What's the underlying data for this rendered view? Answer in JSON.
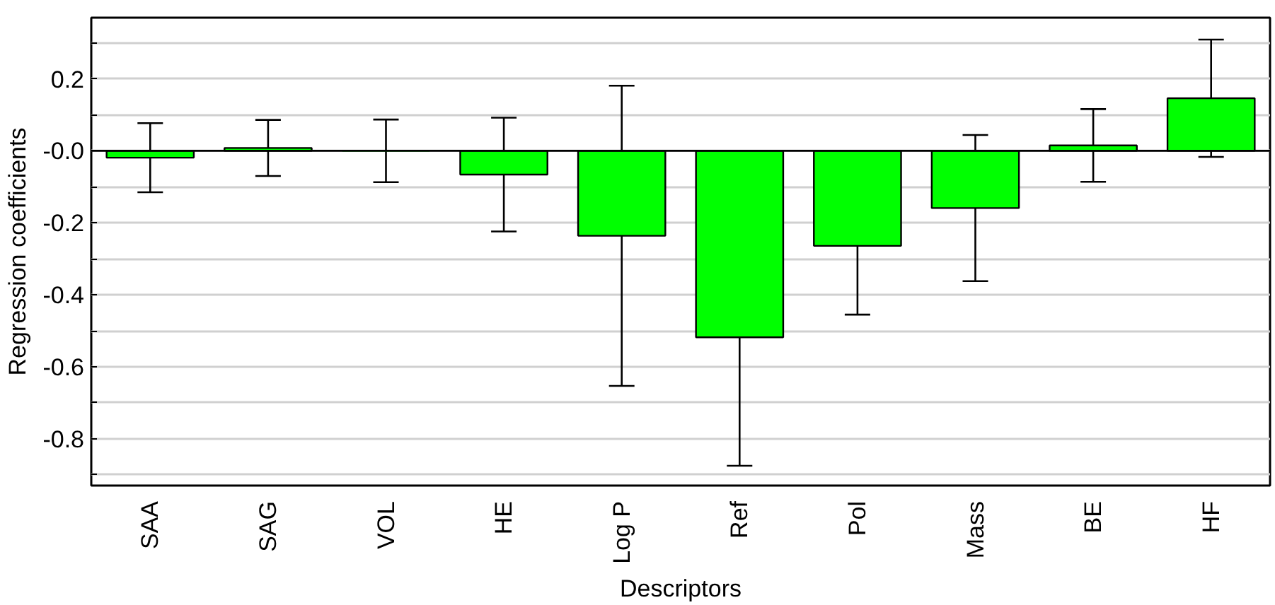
{
  "chart_data": {
    "type": "bar",
    "xlabel": "Descriptors",
    "ylabel": "Regression coefficients",
    "categories": [
      "SAA",
      "SAG",
      "VOL",
      "HE",
      "Log P",
      "Ref",
      "Pol",
      "Mass",
      "BE",
      "HF"
    ],
    "values": [
      -0.019,
      0.008,
      0,
      -0.066,
      -0.236,
      -0.518,
      -0.264,
      -0.159,
      0.015,
      0.146
    ],
    "errors": [
      0.096,
      0.078,
      0.087,
      0.158,
      0.417,
      0.357,
      0.191,
      0.203,
      0.101,
      0.163
    ],
    "color": "#00ff00",
    "ylim": [
      -0.93,
      0.37
    ],
    "yticks": [
      {
        "value": 0.3,
        "label": null
      },
      0.2,
      {
        "value": 0.1,
        "label": null
      },
      {
        "value": 0,
        "label": "-0.0"
      },
      {
        "value": -0.1,
        "label": null
      },
      -0.2,
      {
        "value": -0.3,
        "label": null
      },
      -0.4,
      {
        "value": -0.5,
        "label": null
      },
      -0.6,
      {
        "value": -0.7,
        "label": null
      },
      -0.8,
      {
        "value": -0.9,
        "label": null
      }
    ],
    "ref_lines": [
      {
        "axis": "y",
        "value": 0,
        "color": "#000000"
      }
    ],
    "grid": "y"
  }
}
